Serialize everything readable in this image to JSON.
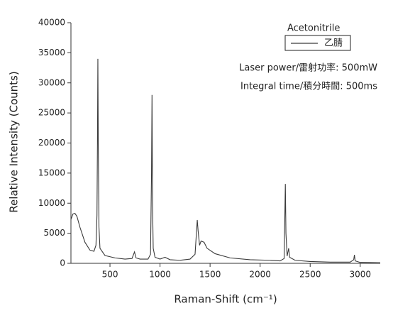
{
  "chart_data": {
    "type": "line",
    "x_label": "Raman-Shift (cm⁻¹)",
    "y_label": "Relative Intensity (Counts)",
    "legend_title": "Acetonitrile",
    "annotations": [
      "Laser power/雷射功率: 500mW",
      "Integral time/積分時間: 500ms"
    ],
    "xlim": [
      110,
      3200
    ],
    "xticks": [
      500,
      1000,
      1500,
      2000,
      2500,
      3000
    ],
    "ylim": [
      0,
      40000
    ],
    "yticks": [
      0,
      5000,
      10000,
      15000,
      20000,
      25000,
      30000,
      35000,
      40000
    ],
    "x": [
      110,
      130,
      150,
      170,
      200,
      250,
      300,
      340,
      360,
      370,
      375,
      379,
      383,
      390,
      400,
      450,
      550,
      650,
      720,
      745,
      760,
      800,
      880,
      905,
      915,
      920,
      925,
      932,
      950,
      1000,
      1050,
      1100,
      1200,
      1300,
      1350,
      1372,
      1380,
      1395,
      1410,
      1440,
      1470,
      1550,
      1700,
      1900,
      2100,
      2200,
      2240,
      2252,
      2258,
      2270,
      2285,
      2295,
      2350,
      2500,
      2700,
      2900,
      2935,
      2942,
      2950,
      3000,
      3200
    ],
    "series": [
      {
        "name": "乙腈",
        "color": "#3a3a3a",
        "values": [
          7300,
          8200,
          8300,
          7800,
          6000,
          3500,
          2200,
          2000,
          3000,
          8000,
          20000,
          34000,
          20000,
          6000,
          2500,
          1300,
          900,
          700,
          800,
          1900,
          900,
          700,
          700,
          1500,
          15000,
          28000,
          10000,
          2500,
          1000,
          700,
          1000,
          600,
          500,
          700,
          1500,
          7200,
          5500,
          3000,
          3700,
          3500,
          2500,
          1600,
          900,
          600,
          500,
          400,
          800,
          13200,
          5000,
          1200,
          2500,
          1000,
          500,
          300,
          200,
          200,
          600,
          1400,
          400,
          150,
          100
        ]
      }
    ]
  }
}
